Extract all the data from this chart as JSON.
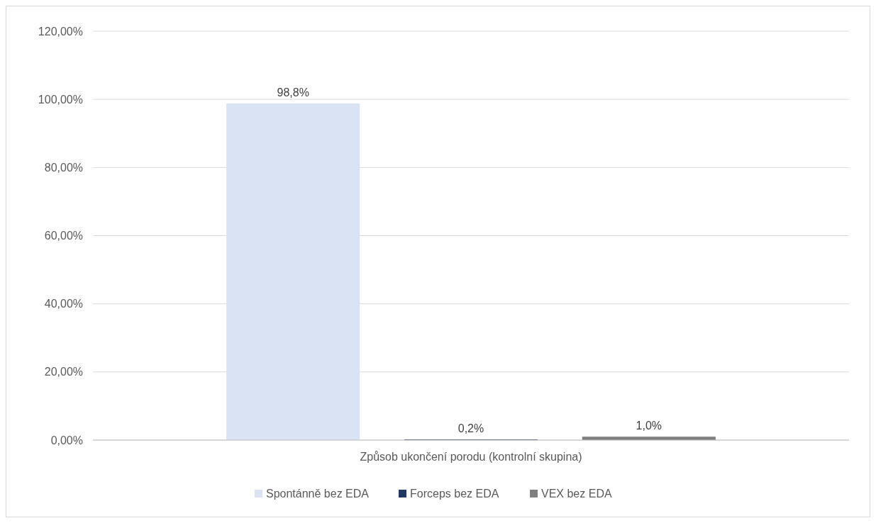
{
  "chart_data": {
    "type": "bar",
    "categories": [
      "Způsob ukončení porodu (kontrolní skupina)"
    ],
    "series": [
      {
        "name": "Spontánně bez EDA",
        "color": "#dae3f3",
        "values": [
          98.8
        ],
        "value_labels": [
          "98,8%"
        ]
      },
      {
        "name": "Forceps bez EDA",
        "color": "#203864",
        "values": [
          0.2
        ],
        "value_labels": [
          "0,2%"
        ]
      },
      {
        "name": "VEX bez EDA",
        "color": "#7f7f7f",
        "values": [
          1.0
        ],
        "value_labels": [
          "1,0%"
        ]
      }
    ],
    "ylim": [
      0,
      120
    ],
    "yticks": [
      {
        "value": 0,
        "label": "0,00%"
      },
      {
        "value": 20,
        "label": "20,00%"
      },
      {
        "value": 40,
        "label": "40,00%"
      },
      {
        "value": 60,
        "label": "60,00%"
      },
      {
        "value": 80,
        "label": "80,00%"
      },
      {
        "value": 100,
        "label": "100,00%"
      },
      {
        "value": 120,
        "label": "120,00%"
      }
    ],
    "grid": "y",
    "legend": "bottom"
  }
}
